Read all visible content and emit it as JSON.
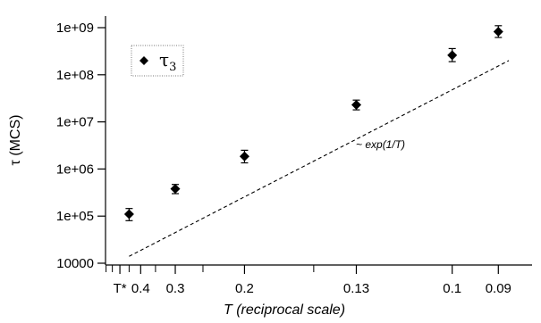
{
  "chart_data": {
    "type": "scatter",
    "xlabel": "T (reciprocal scale)",
    "ylabel": "τ (MCS)",
    "x_scale": "reciprocal",
    "y_scale": "log",
    "xlim": [
      0.67,
      0.083
    ],
    "ylim": [
      10000,
      1000000000
    ],
    "grid": false,
    "x_tick_labels": [
      {
        "value": 0.5,
        "label": "T*"
      },
      {
        "value": 0.4,
        "label": "0.4"
      },
      {
        "value": 0.3,
        "label": "0.3"
      },
      {
        "value": 0.2,
        "label": "0.2"
      },
      {
        "value": 0.13,
        "label": "0.13"
      },
      {
        "value": 0.1,
        "label": "0.1"
      },
      {
        "value": 0.09,
        "label": "0.09"
      }
    ],
    "x_minor_ticks": [
      0.6,
      0.55,
      0.45,
      0.35,
      0.25,
      0.15
    ],
    "y_tick_labels": [
      {
        "value": 10000,
        "label": "10000"
      },
      {
        "value": 100000,
        "label": "1e+05"
      },
      {
        "value": 1000000,
        "label": "1e+06"
      },
      {
        "value": 10000000,
        "label": "1e+07"
      },
      {
        "value": 100000000,
        "label": "1e+08"
      },
      {
        "value": 1000000000,
        "label": "1e+09"
      }
    ],
    "series": [
      {
        "name": "τ",
        "name_subscript": "3",
        "marker": "diamond",
        "color": "#000000",
        "points": [
          {
            "x": 0.45,
            "y": 110000,
            "err_low": 80000,
            "err_high": 145000
          },
          {
            "x": 0.3,
            "y": 380000,
            "err_low": 300000,
            "err_high": 470000
          },
          {
            "x": 0.2,
            "y": 1850000,
            "err_low": 1350000,
            "err_high": 2500000
          },
          {
            "x": 0.13,
            "y": 23000000,
            "err_low": 18000000,
            "err_high": 29000000
          },
          {
            "x": 0.1,
            "y": 260000000,
            "err_low": 190000000,
            "err_high": 360000000
          },
          {
            "x": 0.09,
            "y": 820000000,
            "err_low": 620000000,
            "err_high": 1100000000
          }
        ]
      }
    ],
    "reference_line": {
      "label": "~ exp(1/T)",
      "style": "dashed",
      "points": [
        {
          "x": 0.45,
          "y": 14000
        },
        {
          "x": 0.088,
          "y": 200000000
        }
      ]
    },
    "legend_position": "top-left"
  }
}
